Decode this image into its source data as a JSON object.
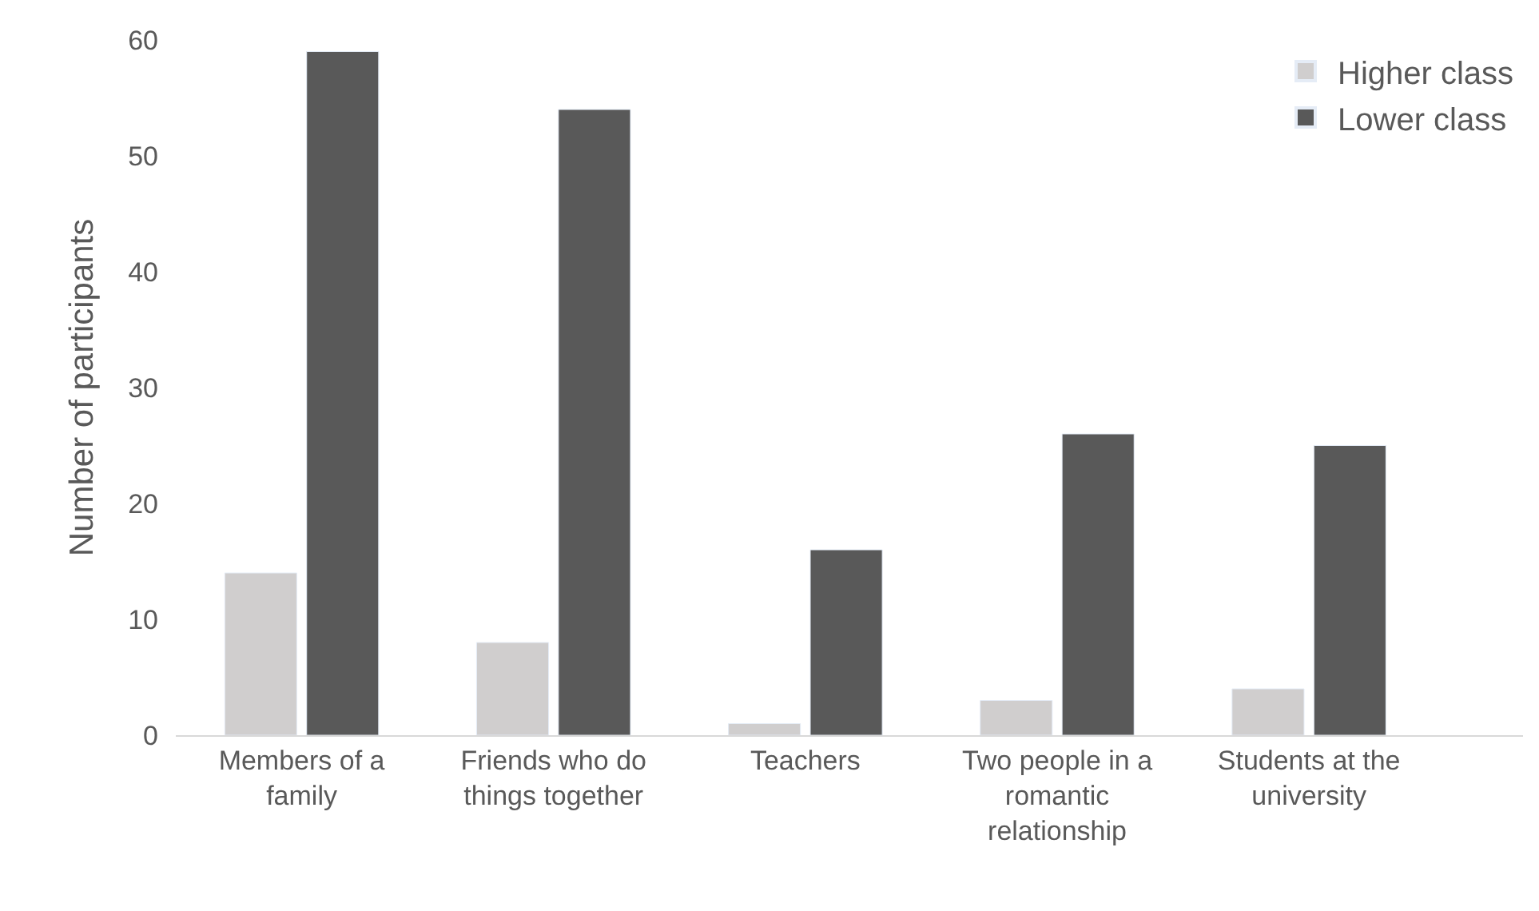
{
  "chart_data": {
    "type": "bar",
    "ylabel": "Number of participants",
    "categories": [
      "Members of a family",
      "Friends who do things together",
      "Teachers",
      "Two people in a romantic relationship",
      "Students at the university"
    ],
    "series": [
      {
        "name": "Higher class",
        "color": "#d0cece",
        "values": [
          14,
          8,
          1,
          3,
          4
        ]
      },
      {
        "name": "Lower class",
        "color": "#595959",
        "values": [
          59,
          54,
          16,
          26,
          25
        ]
      }
    ],
    "ylim": [
      0,
      60
    ],
    "yticks": [
      0,
      10,
      20,
      30,
      40,
      50,
      60
    ],
    "grid": false,
    "legend": "top right"
  }
}
